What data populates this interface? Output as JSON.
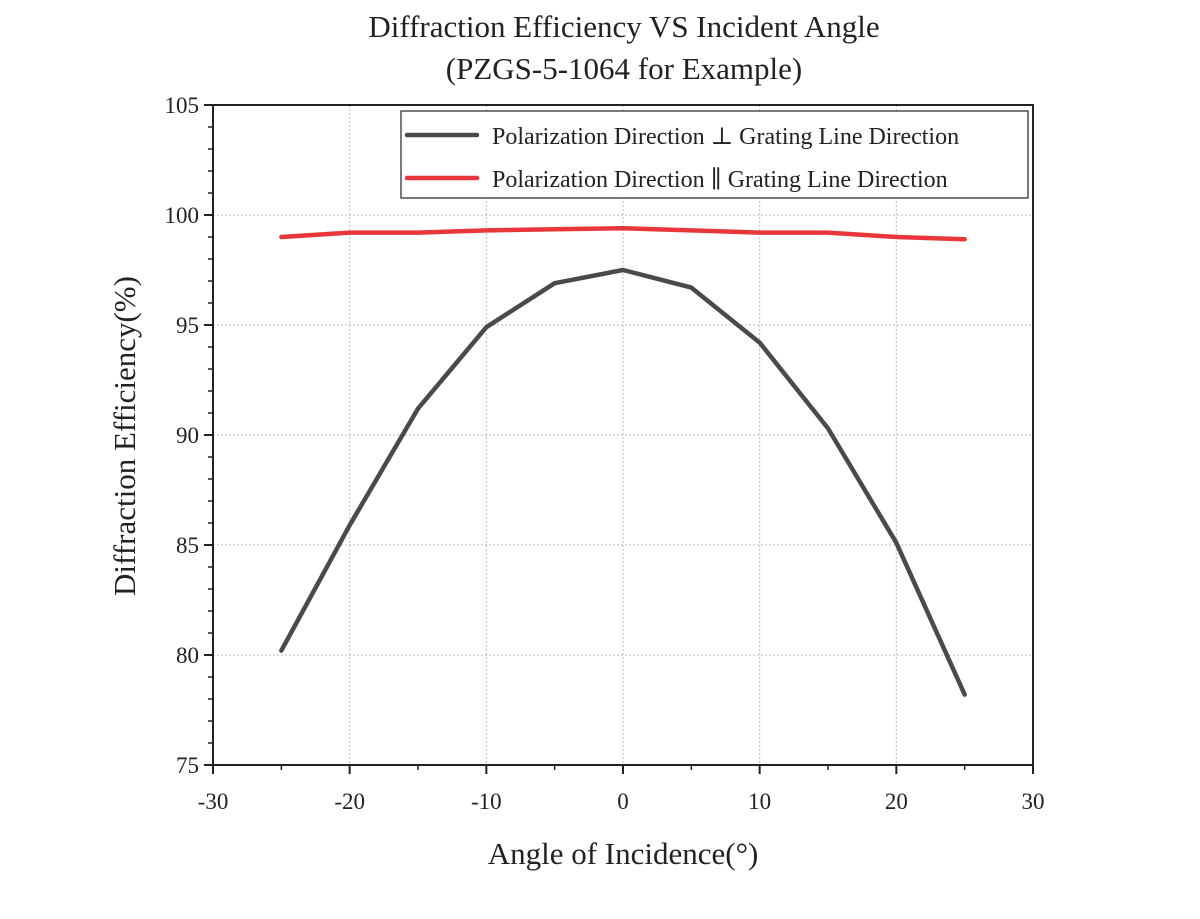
{
  "chart_data": {
    "type": "line",
    "title": "Diffraction Efficiency VS Incident Angle",
    "subtitle": "(PZGS-5-1064 for Example)",
    "xlabel": "Angle of Incidence(°)",
    "ylabel": "Diffraction Efficiency(%)",
    "xlim": [
      -30,
      30
    ],
    "ylim": [
      75,
      105
    ],
    "xticks": [
      -30,
      -20,
      -10,
      0,
      10,
      20,
      30
    ],
    "yticks": [
      75,
      80,
      85,
      90,
      95,
      100,
      105
    ],
    "grid": true,
    "legend_position": "top-right",
    "x": [
      -25,
      -20,
      -15,
      -10,
      -5,
      0,
      5,
      10,
      15,
      20,
      25
    ],
    "series": [
      {
        "name": "Polarization Direction ⊥ Grating Line Direction",
        "color": "#4a4a4a",
        "values": [
          80.2,
          85.9,
          91.2,
          94.9,
          96.9,
          97.5,
          96.7,
          94.2,
          90.3,
          85.1,
          78.2
        ]
      },
      {
        "name": "Polarization Direction ∥ Grating Line Direction",
        "color": "#e8373b",
        "values": [
          99.0,
          99.2,
          99.2,
          99.3,
          99.35,
          99.4,
          99.3,
          99.2,
          99.2,
          99.0,
          98.9
        ]
      }
    ]
  }
}
